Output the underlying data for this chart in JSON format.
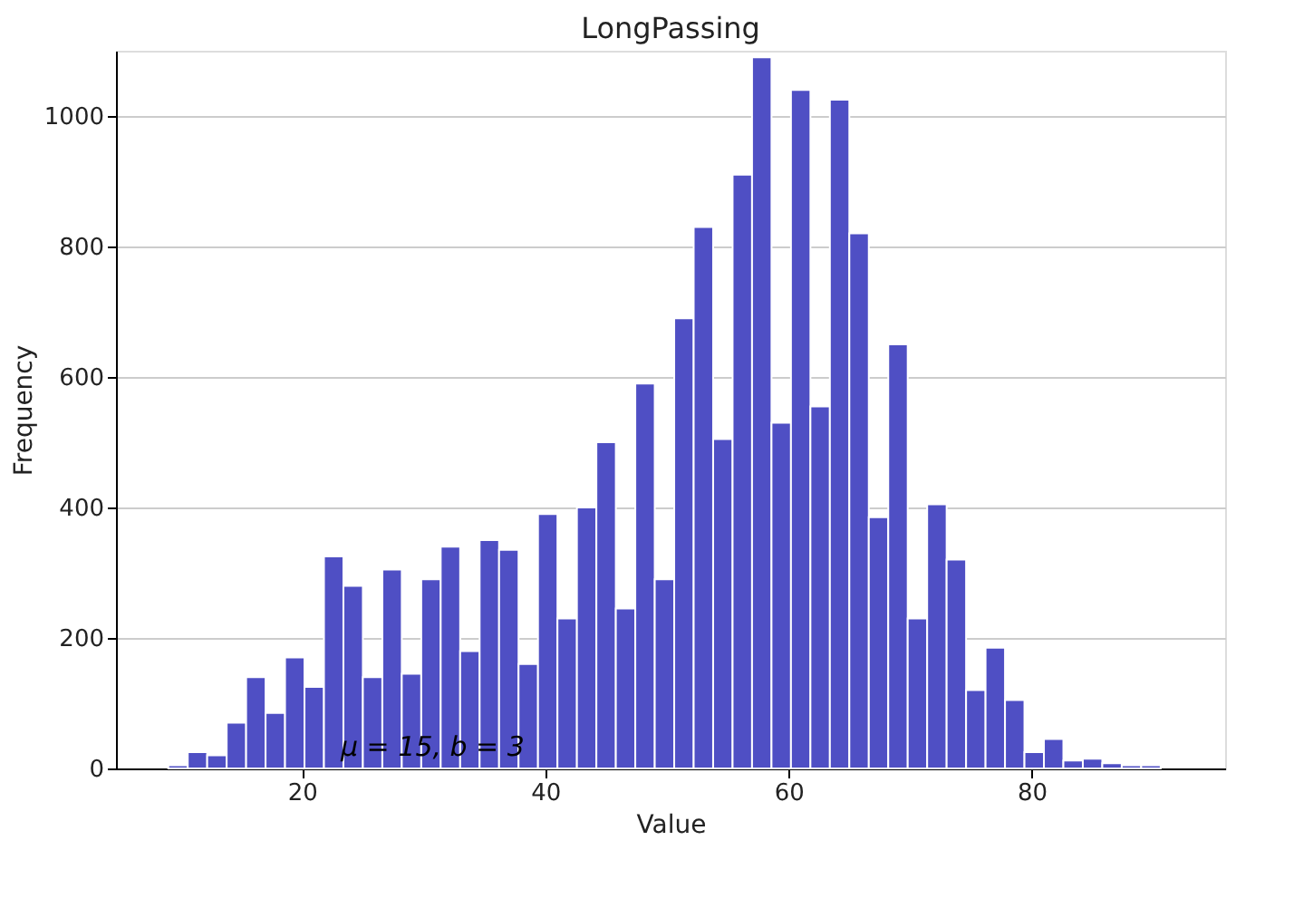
{
  "chart_data": {
    "type": "histogram",
    "title": "LongPassing",
    "xlabel": "Value",
    "ylabel": "Frequency",
    "bins": [
      9,
      10.6,
      12.2,
      13.8,
      15.4,
      17,
      18.6,
      20.2,
      21.8,
      23.4,
      25,
      26.6,
      28.2,
      29.8,
      31.4,
      33,
      34.6,
      36.2,
      37.8,
      39.4,
      41,
      42.6,
      44.2,
      45.8,
      47.4,
      49,
      50.6,
      52.2,
      53.8,
      55.4,
      57,
      58.6,
      60.2,
      61.8,
      63.4,
      65,
      66.6,
      68.2,
      69.8,
      71.4,
      73,
      74.6,
      76.2,
      77.8,
      79.4,
      81,
      82.6,
      84.2,
      85.8,
      87.4,
      89,
      90.6
    ],
    "values": [
      5,
      25,
      20,
      70,
      140,
      85,
      170,
      125,
      325,
      280,
      140,
      305,
      145,
      290,
      340,
      180,
      350,
      335,
      160,
      390,
      230,
      400,
      500,
      245,
      590,
      290,
      690,
      830,
      505,
      910,
      1090,
      530,
      1040,
      555,
      1025,
      820,
      385,
      650,
      230,
      405,
      320,
      120,
      185,
      105,
      25,
      45,
      12,
      15,
      8,
      5,
      5
    ],
    "color": "#4f4fc4",
    "xlim": [
      4.7,
      95.9
    ],
    "xticks": [
      20,
      40,
      60,
      80
    ],
    "ylim": [
      0,
      1100
    ],
    "yticks": [
      0,
      200,
      400,
      600,
      800,
      1000
    ],
    "grid": "y",
    "annotations": [
      "μ = 15, b = 3"
    ]
  }
}
